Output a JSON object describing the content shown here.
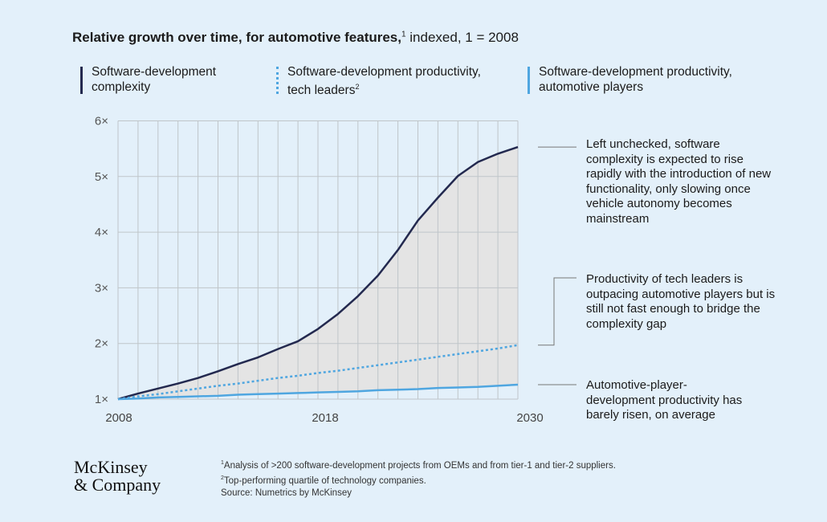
{
  "header": {
    "title_bold": "Relative growth over time, for automotive features,",
    "title_sup": "1",
    "title_rest": " indexed, 1 = 2008"
  },
  "legend": [
    {
      "line1": "Software-development",
      "line2": "complexity",
      "sup": "",
      "style": "solid",
      "color": "#23294f"
    },
    {
      "line1": "Software-development productivity,",
      "line2": "tech leaders",
      "sup": "2",
      "style": "dotted",
      "color": "#4fa6e0"
    },
    {
      "line1": "Software-development productivity,",
      "line2": "automotive players",
      "sup": "",
      "style": "solid",
      "color": "#4fa6e0"
    }
  ],
  "annotations": [
    "Left unchecked, software complexity is expected to rise rapidly with the introduction of new functionality, only slowing once vehicle autonomy becomes mainstream",
    "Productivity of tech leaders is outpacing automotive players but is still not fast enough to bridge the complexity gap",
    "Automotive-player-development productivity has barely risen, on average"
  ],
  "footnotes": {
    "n1_sup": "1",
    "n1": "Analysis of >200 software-development projects from OEMs and from tier-1 and tier-2 suppliers.",
    "n2_sup": "2",
    "n2": "Top-performing quartile of technology companies.",
    "source": "Source: Numetrics by McKinsey"
  },
  "logo": {
    "line1": "McKinsey",
    "line2": "& Company"
  },
  "chart_data": {
    "type": "line",
    "title": "Relative growth over time, for automotive features, indexed, 1 = 2008",
    "xlim": [
      2008,
      2030
    ],
    "x": [
      2008,
      2009.1,
      2010.2,
      2011.3,
      2012.4,
      2013.5,
      2014.6,
      2015.7,
      2016.8,
      2017.9,
      2019,
      2020.1,
      2021.2,
      2022.3,
      2023.4,
      2024.5,
      2025.6,
      2026.7,
      2027.8,
      2028.9,
      2030
    ],
    "x_ticks": [
      {
        "value": 2008,
        "label": "2008"
      },
      {
        "value": 2018,
        "label": "2018"
      },
      {
        "value": 2030,
        "label": "2030"
      }
    ],
    "ylim": [
      1,
      6
    ],
    "y_ticks": [
      {
        "value": 1,
        "label": "1×"
      },
      {
        "value": 2,
        "label": "2×"
      },
      {
        "value": 3,
        "label": "3×"
      },
      {
        "value": 4,
        "label": "4×"
      },
      {
        "value": 5,
        "label": "5×"
      },
      {
        "value": 6,
        "label": "6×"
      }
    ],
    "grid": true,
    "shaded_gap": "between complexity and automotive players",
    "series": [
      {
        "name": "Software-development complexity",
        "style": "solid",
        "color": "#23294f",
        "values": [
          1.0,
          1.1,
          1.19,
          1.28,
          1.38,
          1.5,
          1.63,
          1.75,
          1.9,
          2.04,
          2.26,
          2.53,
          2.85,
          3.22,
          3.68,
          4.21,
          4.62,
          5.01,
          5.26,
          5.41,
          5.53
        ]
      },
      {
        "name": "Software-development productivity, tech leaders",
        "style": "dotted",
        "color": "#4fa6e0",
        "values": [
          1.0,
          1.05,
          1.09,
          1.14,
          1.19,
          1.24,
          1.28,
          1.33,
          1.38,
          1.42,
          1.47,
          1.51,
          1.56,
          1.61,
          1.66,
          1.71,
          1.76,
          1.81,
          1.86,
          1.91,
          1.97
        ]
      },
      {
        "name": "Software-development productivity, automotive players",
        "style": "solid",
        "color": "#4fa6e0",
        "values": [
          1.0,
          1.01,
          1.03,
          1.04,
          1.05,
          1.06,
          1.08,
          1.09,
          1.1,
          1.11,
          1.12,
          1.13,
          1.14,
          1.16,
          1.17,
          1.18,
          1.2,
          1.21,
          1.22,
          1.24,
          1.26
        ]
      }
    ]
  }
}
